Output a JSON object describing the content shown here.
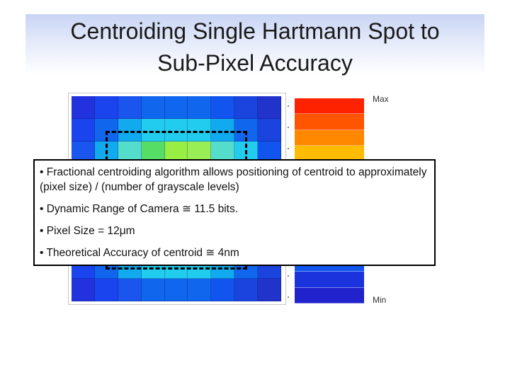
{
  "slide": {
    "title_line1": "Centroiding Single Hartmann Spot to",
    "title_line2": "Sub-Pixel Accuracy"
  },
  "heatmap": {
    "cells": [
      [
        "#2233dd",
        "#1a44ee",
        "#1a55ee",
        "#1166ee",
        "#1166ee",
        "#1166ee",
        "#1155ee",
        "#1a44dd",
        "#2233cc"
      ],
      [
        "#1a44ee",
        "#1166ee",
        "#11aaee",
        "#22ccee",
        "#22ccee",
        "#22ccee",
        "#11aaee",
        "#1166ee",
        "#1a44dd"
      ],
      [
        "#1a55ee",
        "#11aaee",
        "#55ddcc",
        "#55dd66",
        "#99ee44",
        "#99ee55",
        "#55ddcc",
        "#22ccee",
        "#1155ee"
      ],
      [
        "#1166ee",
        "#22ccee",
        "#55dd66",
        "#ccee22",
        "#ffdd00",
        "#ccee22",
        "#55dd66",
        "#22ccee",
        "#1166ee"
      ],
      [
        "#1166ee",
        "#22ccee",
        "#99ee44",
        "#ffdd00",
        "#ff4400",
        "#ffdd00",
        "#99ee44",
        "#22ccee",
        "#1166ee"
      ],
      [
        "#1166ee",
        "#22ccee",
        "#55dd66",
        "#ccee22",
        "#ffdd00",
        "#ccee22",
        "#55dd66",
        "#22ccee",
        "#1166ee"
      ],
      [
        "#1a55ee",
        "#11aaee",
        "#55ddcc",
        "#55dd66",
        "#99ee44",
        "#55dd66",
        "#55ddcc",
        "#11aaee",
        "#1155ee"
      ],
      [
        "#1a44ee",
        "#1166ee",
        "#11aaee",
        "#22ccee",
        "#22ccee",
        "#22ccee",
        "#11aaee",
        "#1166ee",
        "#1a44dd"
      ],
      [
        "#2233dd",
        "#1a44ee",
        "#1a55ee",
        "#1166ee",
        "#1166ee",
        "#1166ee",
        "#1155ee",
        "#1a44dd",
        "#2233cc"
      ]
    ]
  },
  "colorbar": {
    "max_label": "Max",
    "min_label": "Min",
    "colors": [
      "#ff2200",
      "#ff5500",
      "#ff8800",
      "#ffbb00",
      "#eeff00",
      "#aaee22",
      "#55dd77",
      "#22ccdd",
      "#11aaee",
      "#1177ee",
      "#1155ee",
      "#1a33dd",
      "#2222cc"
    ]
  },
  "notes": [
    "• Fractional centroiding algorithm allows positioning of centroid to approximately (pixel size) / (number of grayscale levels)",
    "• Dynamic Range of Camera ≅ 11.5 bits.",
    "• Pixel Size = 12μm",
    "• Theoretical Accuracy of centroid ≅ 4nm"
  ]
}
